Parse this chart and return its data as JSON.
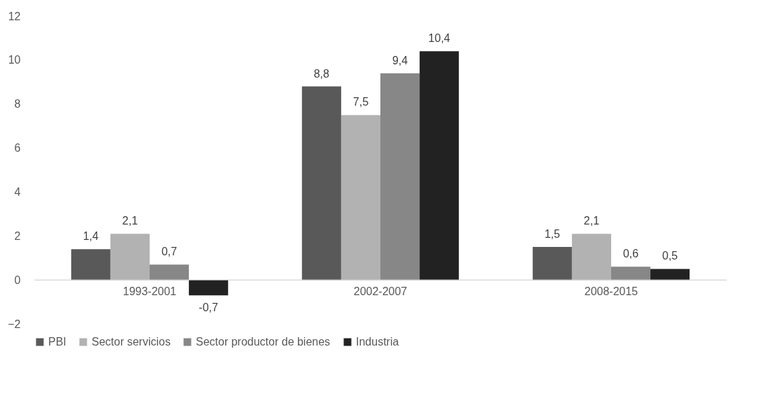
{
  "chart_data": {
    "type": "bar",
    "categories": [
      "1993-2001",
      "2002-2007",
      "2008-2015"
    ],
    "series": [
      {
        "name": "PBI",
        "color": "#595959",
        "values": [
          1.4,
          8.8,
          1.5
        ],
        "value_labels": [
          "1,4",
          "8,8",
          "1,5"
        ]
      },
      {
        "name": "Sector servicios",
        "color": "#b2b2b2",
        "values": [
          2.1,
          7.5,
          2.1
        ],
        "value_labels": [
          "2,1",
          "7,5",
          "2,1"
        ]
      },
      {
        "name": "Sector productor de bienes",
        "color": "#878787",
        "values": [
          0.7,
          9.4,
          0.6
        ],
        "value_labels": [
          "0,7",
          "9,4",
          "0,6"
        ]
      },
      {
        "name": "Industria",
        "color": "#222222",
        "values": [
          -0.7,
          10.4,
          0.5
        ],
        "value_labels": [
          "-0,7",
          "10,4",
          "0,5"
        ]
      }
    ],
    "ylim": [
      -2,
      12
    ],
    "yticks": [
      -2,
      0,
      2,
      4,
      6,
      8,
      10,
      12
    ],
    "grid": false,
    "legend": "bottom"
  }
}
